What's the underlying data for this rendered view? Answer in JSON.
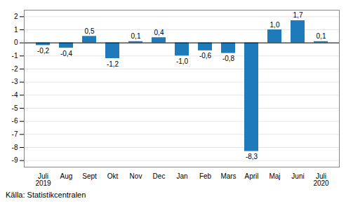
{
  "chart_data": {
    "type": "bar",
    "categories": [
      "Juli\n2019",
      "Aug",
      "Sept",
      "Okt",
      "Nov",
      "Dec",
      "Jan",
      "Feb",
      "Mars",
      "April",
      "Maj",
      "Juni",
      "Juli\n2020"
    ],
    "values": [
      -0.2,
      -0.4,
      0.5,
      -1.2,
      0.1,
      0.4,
      -1.0,
      -0.6,
      -0.8,
      -8.3,
      1.0,
      1.7,
      0.1
    ],
    "value_labels": [
      "-0,2",
      "-0,4",
      "0,5",
      "-1,2",
      "0,1",
      "0,4",
      "-1,0",
      "-0,6",
      "-0,8",
      "-8,3",
      "1,0",
      "1,7",
      "0,1"
    ],
    "data_labels": true,
    "color": "#1e7ab8",
    "ylim": [
      -9.5,
      2.5
    ],
    "yticks": [
      -9,
      -8,
      -7,
      -6,
      -5,
      -4,
      -3,
      -2,
      -1,
      0,
      1,
      2
    ],
    "grid": true,
    "caption": "Källa: Statistikcentralen"
  }
}
